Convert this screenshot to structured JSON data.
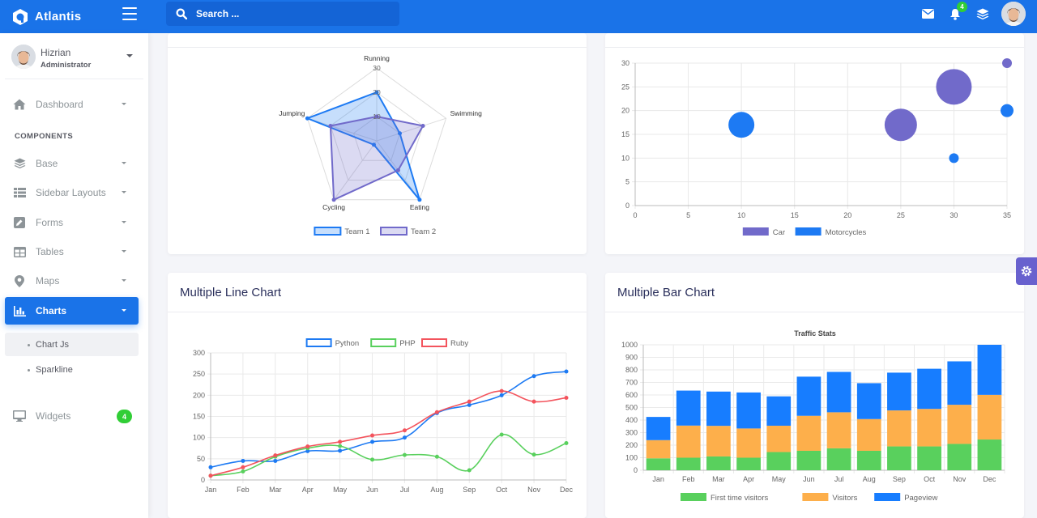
{
  "header": {
    "brand": "Atlantis",
    "search_placeholder": "Search ...",
    "notification_count": "4",
    "accent": "#1a73e8"
  },
  "user": {
    "name": "Hizrian",
    "role": "Administrator"
  },
  "sidebar": {
    "section_label": "COMPONENTS",
    "items": [
      {
        "label": "Dashboard",
        "icon": "home-icon"
      },
      {
        "label": "Base",
        "icon": "layers-icon"
      },
      {
        "label": "Sidebar Layouts",
        "icon": "th-list-icon"
      },
      {
        "label": "Forms",
        "icon": "pen-square-icon"
      },
      {
        "label": "Tables",
        "icon": "table-icon"
      },
      {
        "label": "Maps",
        "icon": "map-marker-icon"
      },
      {
        "label": "Charts",
        "icon": "bar-chart-icon"
      },
      {
        "label": "Widgets",
        "icon": "desktop-icon",
        "badge": "4"
      }
    ],
    "charts_sub": [
      "Chart Js",
      "Sparkline"
    ]
  },
  "cards": {
    "line_title": "Multiple Line Chart",
    "bar_title": "Multiple Bar Chart"
  },
  "chart_data": [
    {
      "type": "radar",
      "labels": [
        "Running",
        "Swimming",
        "Eating",
        "Cycling",
        "Jumping"
      ],
      "ticks": [
        "10",
        "20",
        "30"
      ],
      "max": 30,
      "series": [
        {
          "name": "Team 1",
          "values": [
            20,
            10,
            30,
            2,
            30
          ],
          "color": "#1d7af3"
        },
        {
          "name": "Team 2",
          "values": [
            10,
            20,
            15,
            30,
            20
          ],
          "color": "#716aca"
        }
      ]
    },
    {
      "type": "scatter",
      "xlim": [
        0,
        35
      ],
      "ylim": [
        0,
        30
      ],
      "xticks": [
        "0",
        "5",
        "10",
        "15",
        "20",
        "25",
        "30",
        "35"
      ],
      "yticks": [
        "0",
        "5",
        "10",
        "15",
        "20",
        "25",
        "30"
      ],
      "series": [
        {
          "name": "Car",
          "color": "#716aca",
          "points": [
            {
              "x": 25,
              "y": 17,
              "r": 20
            },
            {
              "x": 30,
              "y": 25,
              "r": 22
            },
            {
              "x": 35,
              "y": 30,
              "r": 6
            }
          ]
        },
        {
          "name": "Motorcycles",
          "color": "#1d7af3",
          "points": [
            {
              "x": 10,
              "y": 17,
              "r": 16
            },
            {
              "x": 30,
              "y": 10,
              "r": 6
            },
            {
              "x": 35,
              "y": 20,
              "r": 8
            }
          ]
        }
      ]
    },
    {
      "type": "line",
      "categories": [
        "Jan",
        "Feb",
        "Mar",
        "Apr",
        "May",
        "Jun",
        "Jul",
        "Aug",
        "Sep",
        "Oct",
        "Nov",
        "Dec"
      ],
      "ylim": [
        0,
        300
      ],
      "yticks": [
        "0",
        "50",
        "100",
        "150",
        "200",
        "250",
        "300"
      ],
      "series": [
        {
          "name": "Python",
          "color": "#1d7af3",
          "values": [
            30,
            45,
            45,
            68,
            69,
            90,
            100,
            158,
            177,
            200,
            245,
            256
          ]
        },
        {
          "name": "PHP",
          "color": "#59d05d",
          "values": [
            10,
            20,
            55,
            75,
            80,
            48,
            59,
            55,
            23,
            107,
            60,
            87
          ]
        },
        {
          "name": "Ruby",
          "color": "#f3545d",
          "values": [
            10,
            30,
            58,
            79,
            90,
            105,
            117,
            160,
            185,
            210,
            185,
            194
          ]
        }
      ]
    },
    {
      "type": "bar",
      "stacked": true,
      "title": "Traffic Stats",
      "categories": [
        "Jan",
        "Feb",
        "Mar",
        "Apr",
        "May",
        "Jun",
        "Jul",
        "Aug",
        "Sep",
        "Oct",
        "Nov",
        "Dec"
      ],
      "ylim": [
        0,
        1000
      ],
      "yticks": [
        "0",
        "100",
        "200",
        "300",
        "400",
        "500",
        "600",
        "700",
        "800",
        "900",
        "1000"
      ],
      "series": [
        {
          "name": "First time visitors",
          "color": "#59d05d",
          "values": [
            95,
            100,
            110,
            100,
            145,
            155,
            175,
            155,
            190,
            190,
            210,
            245
          ]
        },
        {
          "name": "Visitors",
          "color": "#fdaf4b",
          "values": [
            145,
            256,
            244,
            233,
            210,
            279,
            287,
            253,
            287,
            299,
            312,
            356
          ]
        },
        {
          "name": "Pageview",
          "color": "#177dff",
          "values": [
            185,
            279,
            273,
            287,
            234,
            312,
            322,
            286,
            301,
            320,
            346,
            399
          ]
        }
      ]
    }
  ]
}
